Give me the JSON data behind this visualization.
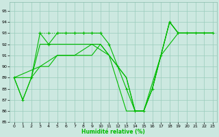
{
  "xlabel": "Humidité relative (%)",
  "bg_color": "#cce8e0",
  "grid_color": "#99ccbb",
  "line_color": "#00bb00",
  "xlim": [
    -0.5,
    23.5
  ],
  "ylim": [
    85,
    95.8
  ],
  "yticks": [
    85,
    86,
    87,
    88,
    89,
    90,
    91,
    92,
    93,
    94,
    95
  ],
  "xticks": [
    0,
    1,
    2,
    3,
    4,
    5,
    6,
    7,
    8,
    9,
    10,
    11,
    12,
    13,
    14,
    15,
    16,
    17,
    18,
    19,
    20,
    21,
    22,
    23
  ],
  "line1_x": [
    3,
    4,
    5,
    6,
    7,
    8,
    9,
    10
  ],
  "line1_y": [
    93,
    93,
    93,
    93,
    93,
    93,
    93,
    93
  ],
  "line2_x": [
    0,
    1,
    2,
    3,
    4,
    5,
    6,
    7,
    8,
    9,
    10,
    11,
    12,
    13,
    14,
    15,
    16,
    17,
    18,
    19,
    20,
    21,
    22,
    23
  ],
  "line2_y": [
    89,
    87,
    89,
    93,
    92,
    93,
    93,
    93,
    93,
    93,
    93,
    92,
    90,
    88,
    86,
    86,
    88,
    91,
    94,
    93,
    93,
    93,
    93,
    93
  ],
  "line3_x": [
    0,
    1,
    2,
    3,
    4,
    5,
    6,
    7,
    8,
    9,
    10,
    11,
    12,
    13,
    14,
    15,
    16,
    17,
    18,
    19,
    20,
    21,
    22,
    23
  ],
  "line3_y": [
    89,
    87,
    89,
    92,
    92,
    92,
    92,
    92,
    92,
    92,
    92,
    91,
    90,
    89,
    86,
    86,
    88,
    91,
    94,
    93,
    93,
    93,
    93,
    93
  ],
  "line4_x": [
    0,
    2,
    3,
    4,
    5,
    6,
    7,
    8,
    9,
    10,
    11,
    12,
    13,
    14,
    15,
    16,
    17,
    18,
    19,
    20,
    21,
    22,
    23
  ],
  "line4_y": [
    89,
    89,
    90,
    90,
    91,
    91,
    91,
    91,
    91,
    92,
    91,
    90,
    89,
    86,
    86,
    88,
    91,
    94,
    93,
    93,
    93,
    93,
    93
  ],
  "line5_x": [
    0,
    3,
    5,
    7,
    9,
    11,
    13,
    15,
    17,
    19,
    21,
    23
  ],
  "line5_y": [
    89,
    90,
    91,
    91,
    92,
    91,
    86,
    86,
    91,
    93,
    93,
    93
  ]
}
